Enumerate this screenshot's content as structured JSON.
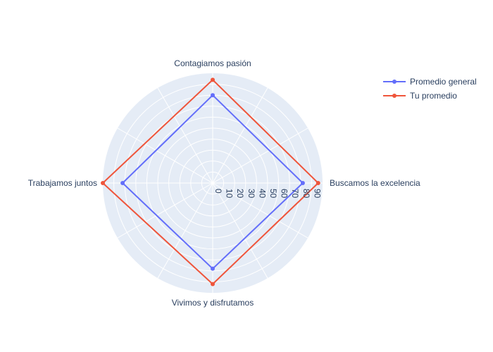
{
  "chart_data": {
    "type": "radar",
    "categories": [
      "Buscamos la excelencia",
      "Contagiamos pasión",
      "Trabajamos juntos",
      "Vivimos y disfrutamos"
    ],
    "series": [
      {
        "name": "Promedio general",
        "values": [
          82,
          78,
          82,
          80
        ],
        "color": "#636efa"
      },
      {
        "name": "Tu promedio",
        "values": [
          96,
          92,
          100,
          94
        ],
        "color": "#ef553b"
      }
    ],
    "radial_range": [
      0,
      100
    ],
    "radial_ticks": [
      "0",
      "10",
      "20",
      "30",
      "40",
      "50",
      "60",
      "70",
      "80",
      "90"
    ],
    "radial_tick_values": [
      0,
      10,
      20,
      30,
      40,
      50,
      60,
      70,
      80,
      90
    ],
    "background_color": "#e5ecf6",
    "grid": true,
    "legend_position": "top-right"
  }
}
